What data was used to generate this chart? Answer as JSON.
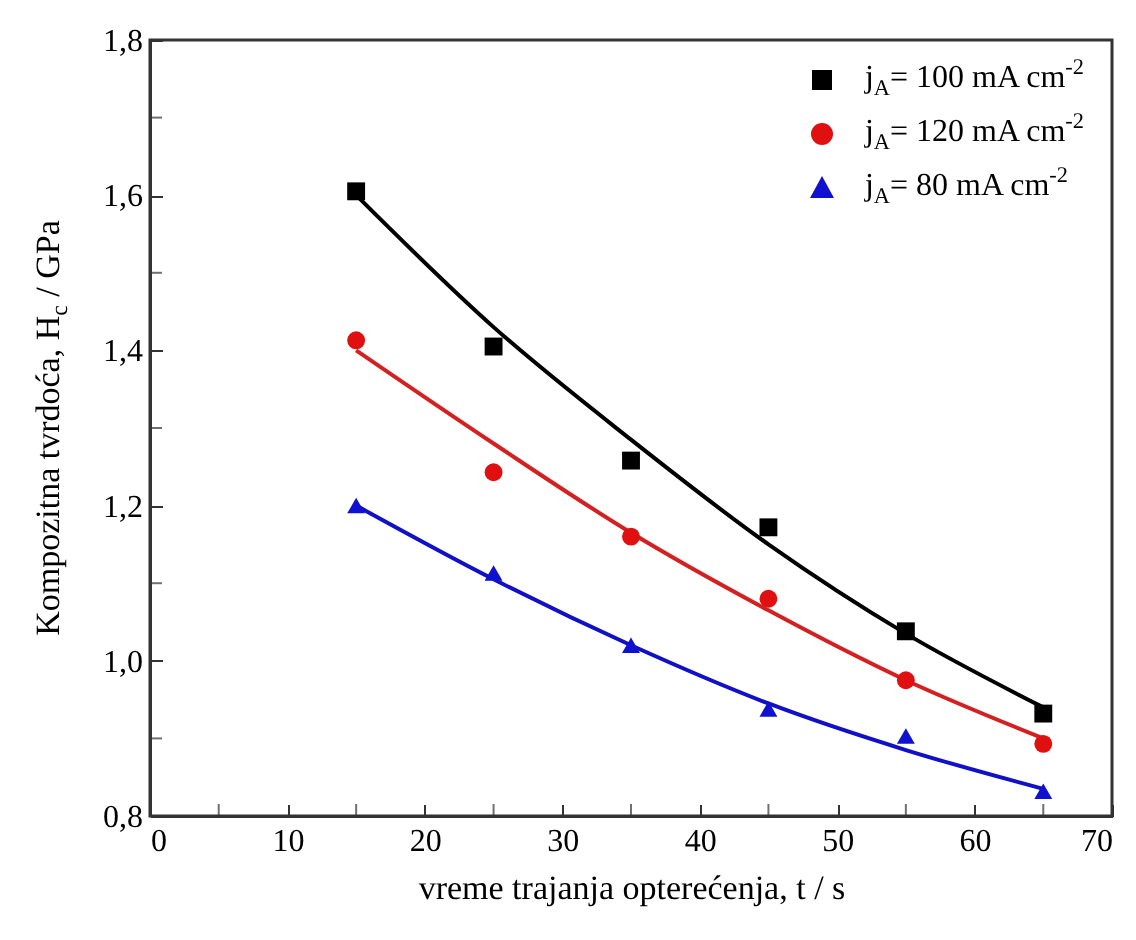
{
  "chart_data": {
    "type": "scatter",
    "xlabel": "vreme trajanja opterećenja, t / s",
    "ylabel": "Kompozitna tvrdoća, H$_{c}$ / GPa",
    "xlim": [
      0,
      70
    ],
    "ylim": [
      0.8,
      1.8
    ],
    "xticks": [
      0,
      {
        "value": 5,
        "label": null
      },
      10,
      {
        "value": 15,
        "label": null
      },
      20,
      {
        "value": 25,
        "label": null
      },
      30,
      {
        "value": 35,
        "label": null
      },
      40,
      {
        "value": 45,
        "label": null
      },
      50,
      {
        "value": 55,
        "label": null
      },
      60,
      {
        "value": 65,
        "label": null
      },
      70
    ],
    "yticks": [
      {
        "value": 0.8,
        "label": "0,8"
      },
      {
        "value": 0.9,
        "label": null
      },
      {
        "value": 1.0,
        "label": "1,0"
      },
      {
        "value": 1.1,
        "label": null
      },
      {
        "value": 1.2,
        "label": "1,2"
      },
      {
        "value": 1.3,
        "label": null
      },
      {
        "value": 1.4,
        "label": "1,4"
      },
      {
        "value": 1.5,
        "label": null
      },
      {
        "value": 1.6,
        "label": "1,6"
      },
      {
        "value": 1.7,
        "label": null
      },
      {
        "value": 1.8,
        "label": "1,8"
      }
    ],
    "grid": false,
    "legend": "top right",
    "series": [
      {
        "type": "line",
        "marker": "none",
        "color": "#000000",
        "x": [
          15,
          25,
          35,
          45,
          55,
          65
        ],
        "values": [
          1.6,
          1.43,
          1.285,
          1.15,
          1.035,
          0.94
        ]
      },
      {
        "type": "line",
        "marker": "none",
        "color": "#d42020",
        "x": [
          15,
          25,
          35,
          45,
          55,
          65
        ],
        "values": [
          1.4,
          1.28,
          1.165,
          1.065,
          0.975,
          0.9
        ]
      },
      {
        "type": "line",
        "marker": "none",
        "color": "#1010c8",
        "x": [
          15,
          25,
          35,
          45,
          55,
          65
        ],
        "values": [
          1.2,
          1.105,
          1.02,
          0.945,
          0.885,
          0.835
        ]
      },
      {
        "marker": "square",
        "name": "j$_{A}$= 100 mA cm$^{-2}$",
        "color": "#000000",
        "x": [
          15,
          25,
          35,
          45,
          55,
          65
        ],
        "values": [
          1.605,
          1.405,
          1.258,
          1.172,
          1.038,
          0.932
        ]
      },
      {
        "marker": "circle",
        "name": "j$_{A}$= 120 mA cm$^{-2}$",
        "color": "#e01010",
        "x": [
          15,
          25,
          35,
          45,
          55,
          65
        ],
        "values": [
          1.413,
          1.243,
          1.16,
          1.08,
          0.975,
          0.893
        ]
      },
      {
        "marker": "triangle",
        "name": "j$_{A}$= 80 mA cm$^{-2}$",
        "color": "#1010d0",
        "x": [
          15,
          25,
          35,
          45,
          55,
          65
        ],
        "values": [
          1.2,
          1.113,
          1.02,
          0.938,
          0.903,
          0.832
        ]
      }
    ]
  }
}
